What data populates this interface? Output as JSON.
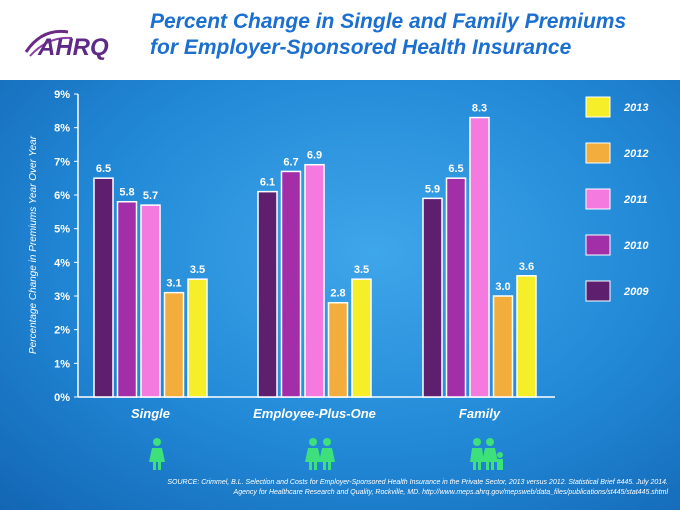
{
  "header": {
    "logo_text": "AHRQ",
    "title_line1": "Percent Change in Single and Family Premiums",
    "title_line2": "for Employer-Sponsored Health Insurance"
  },
  "chart_data": {
    "type": "bar",
    "categories": [
      "Single",
      "Employee-Plus-One",
      "Family"
    ],
    "series": [
      {
        "name": "2009",
        "color": "#5e1f6e",
        "values": [
          6.5,
          6.1,
          5.9
        ],
        "labels": [
          "6.5",
          "6.1",
          "5.9"
        ]
      },
      {
        "name": "2010",
        "color": "#a22ea8",
        "values": [
          5.8,
          6.7,
          6.5
        ],
        "labels": [
          "5.8",
          "6.7",
          "6.5"
        ]
      },
      {
        "name": "2011",
        "color": "#f57ae0",
        "values": [
          5.7,
          6.9,
          8.3
        ],
        "labels": [
          "5.7",
          "6.9",
          "8.3"
        ]
      },
      {
        "name": "2012",
        "color": "#f2ad3d",
        "values": [
          3.1,
          2.8,
          3.0
        ],
        "labels": [
          "3.1",
          "2.8",
          "3.0"
        ]
      },
      {
        "name": "2013",
        "color": "#f7ee2a",
        "values": [
          3.5,
          3.5,
          3.6
        ],
        "labels": [
          "3.5",
          "3.5",
          "3.6"
        ]
      }
    ],
    "legend_order": [
      "2013",
      "2012",
      "2011",
      "2010",
      "2009"
    ],
    "legend_placement": "right",
    "ylabel": "Percentage Change in Premiums Year Over Year",
    "ylim": [
      0,
      9
    ],
    "yticks": [
      "0%",
      "1%",
      "2%",
      "3%",
      "4%",
      "5%",
      "6%",
      "7%",
      "8%",
      "9%"
    ],
    "grid": false
  },
  "icons": [
    "single-person-icon",
    "two-persons-icon",
    "family-icon"
  ],
  "source": {
    "line1": "SOURCE: Crimmel, B.L. Selection and Costs for Employer-Sponsored Health Insurance in the Private Sector, 2013 versus 2012. Statistical Brief #445. July 2014.",
    "line2": "Agency for Healthcare Research and Quality, Rockville, MD. http://www.meps.ahrq.gov/mepsweb/data_files/publications/st445/stat445.shtml"
  }
}
